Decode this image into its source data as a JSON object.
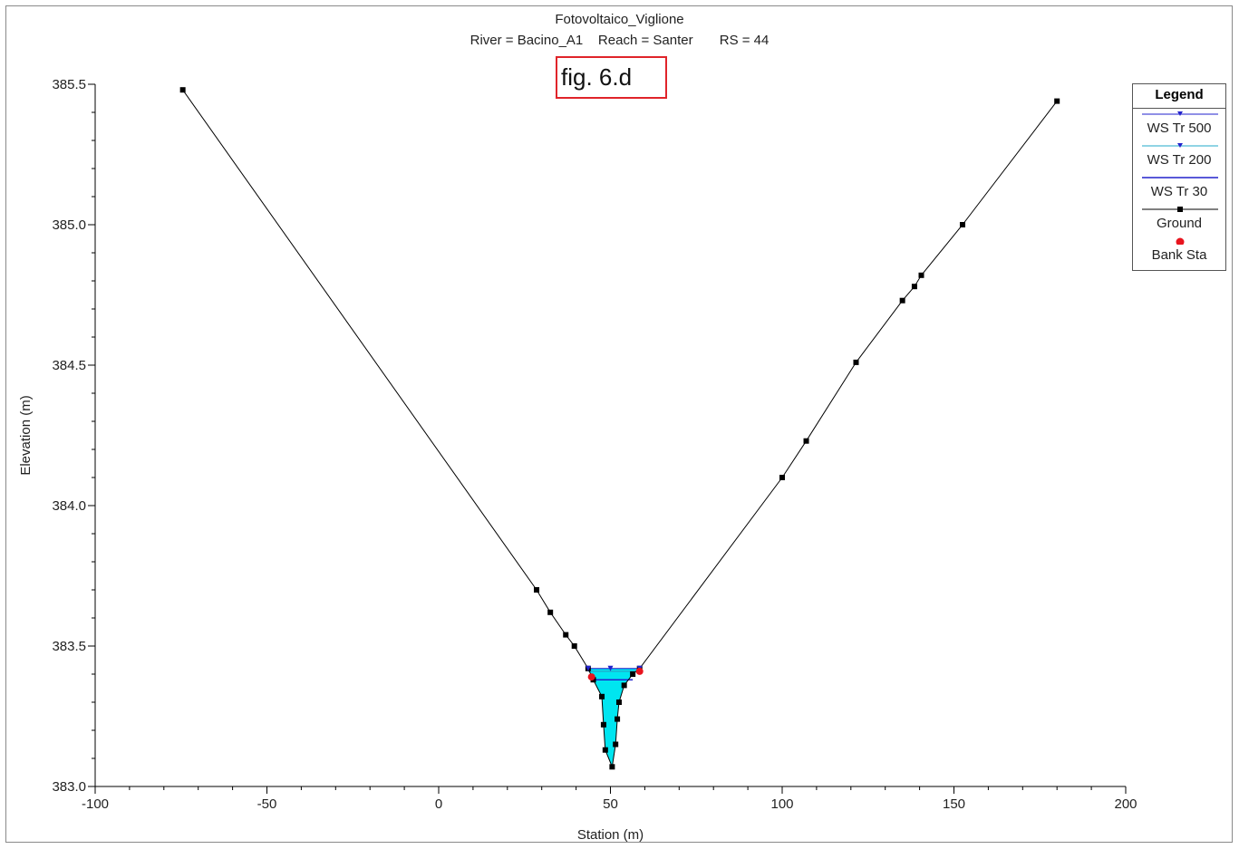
{
  "chart_data": {
    "type": "line",
    "title": "Fotovoltaico_Viglione",
    "subtitle": "River = Bacino_A1    Reach = Santer       RS = 44",
    "annotation": "fig. 6.d",
    "xlabel": "Station (m)",
    "ylabel": "Elevation (m)",
    "xlim": [
      -100,
      200
    ],
    "ylim": [
      383.0,
      385.5
    ],
    "xticks": [
      -100,
      -50,
      0,
      50,
      100,
      150,
      200
    ],
    "yticks": [
      383.0,
      383.5,
      384.0,
      384.5,
      385.0,
      385.5
    ],
    "grid": false,
    "legend_position": "top-right",
    "legend_title": "Legend",
    "series": [
      {
        "name": "WS Tr 500",
        "color": "#2222cc",
        "elevation": 383.42,
        "x": [
          43.5,
          50,
          58.5
        ]
      },
      {
        "name": "WS Tr 200",
        "color": "#22a8c8",
        "elevation": 383.41,
        "x": [
          43.6,
          58.4
        ]
      },
      {
        "name": "WS Tr 30",
        "color": "#2222cc",
        "elevation": 383.38,
        "x": [
          45.5,
          56.5
        ]
      },
      {
        "name": "Ground",
        "color": "#000000",
        "points": [
          [
            -74.5,
            385.48
          ],
          [
            28.5,
            383.7
          ],
          [
            32.5,
            383.62
          ],
          [
            37,
            383.54
          ],
          [
            39.5,
            383.5
          ],
          [
            43.5,
            383.42
          ],
          [
            45,
            383.38
          ],
          [
            47.5,
            383.32
          ],
          [
            48,
            383.22
          ],
          [
            48.5,
            383.13
          ],
          [
            50.5,
            383.07
          ],
          [
            51.5,
            383.15
          ],
          [
            52,
            383.24
          ],
          [
            52.5,
            383.3
          ],
          [
            54,
            383.36
          ],
          [
            56.5,
            383.4
          ],
          [
            58.5,
            383.42
          ],
          [
            100,
            384.1
          ],
          [
            107,
            384.23
          ],
          [
            121.5,
            384.51
          ],
          [
            135,
            384.73
          ],
          [
            138.5,
            384.78
          ],
          [
            140.5,
            384.82
          ],
          [
            152.5,
            385.0
          ],
          [
            180,
            385.44
          ]
        ]
      },
      {
        "name": "Bank Sta",
        "color": "#e8141e",
        "points": [
          [
            44.5,
            383.39
          ],
          [
            58.5,
            383.41
          ]
        ]
      }
    ],
    "fill_color": "#00e5f0"
  }
}
